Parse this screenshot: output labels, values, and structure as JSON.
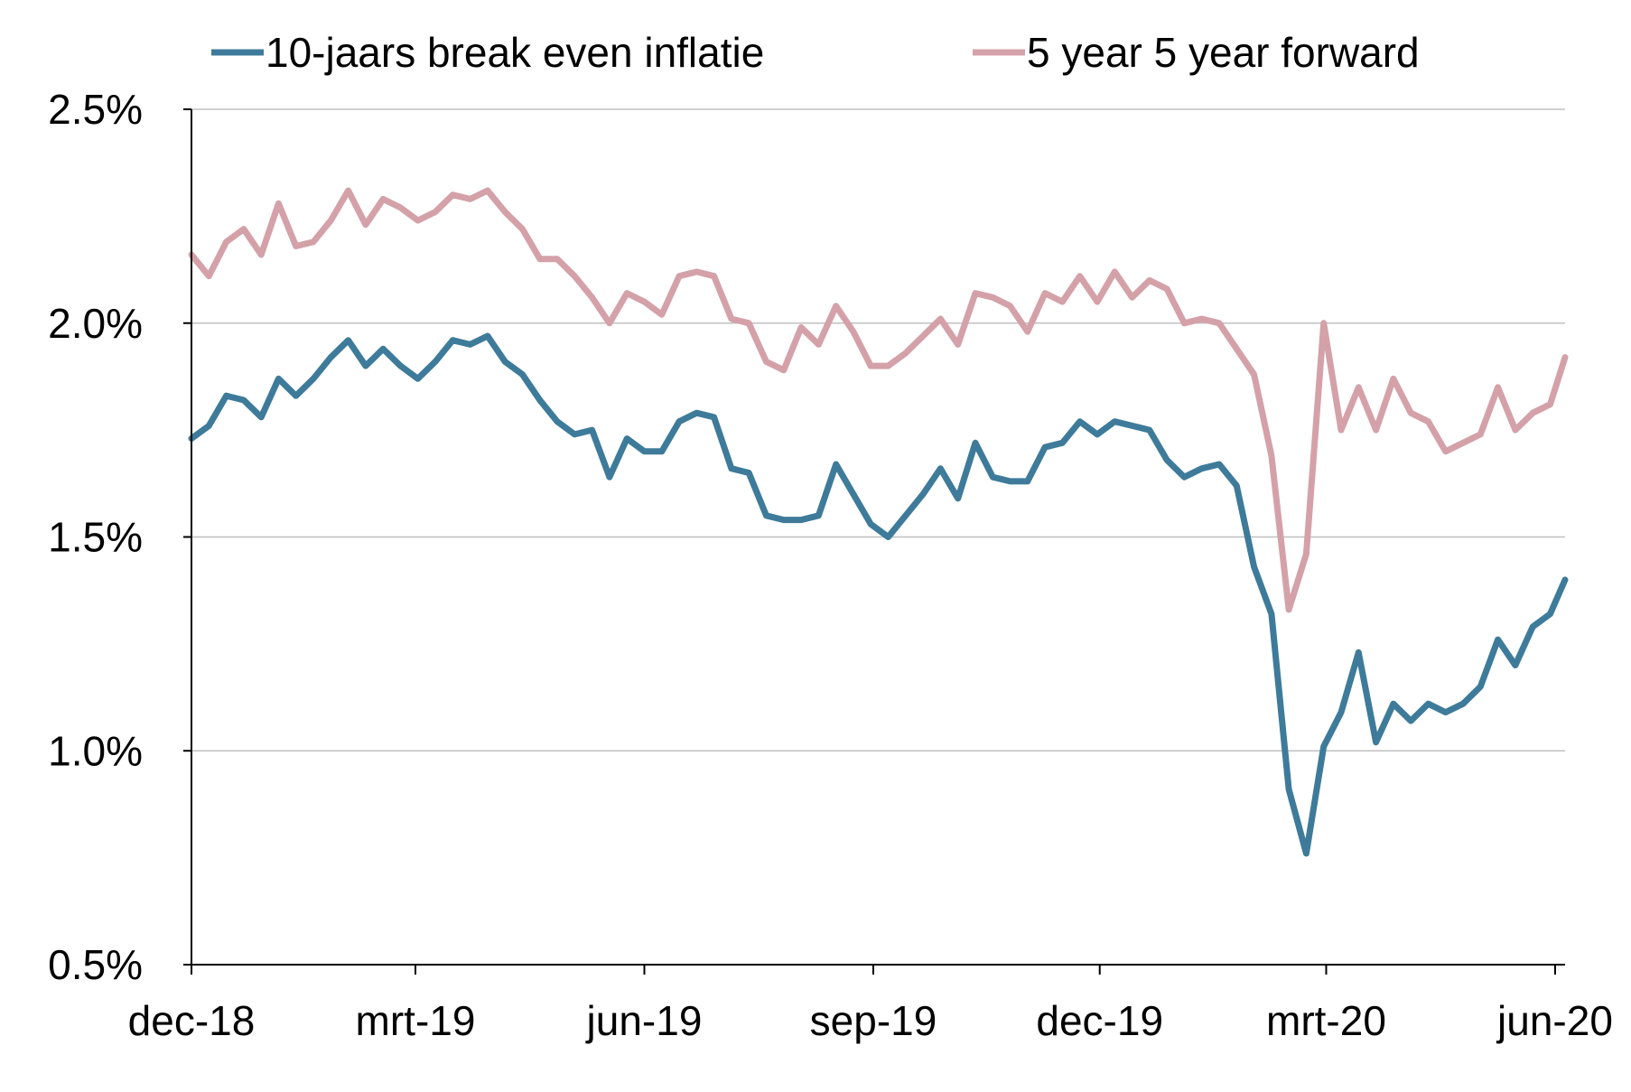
{
  "chart_data": {
    "type": "line",
    "title": "",
    "xlabel": "",
    "ylabel": "",
    "y_unit": "%",
    "ylim": [
      0.5,
      2.5
    ],
    "y_ticks": [
      0.5,
      1.0,
      1.5,
      2.0,
      2.5
    ],
    "y_tick_labels": [
      "0.5%",
      "1.0%",
      "1.5%",
      "2.0%",
      "2.5%"
    ],
    "x_start": "2018-12-01",
    "x_end": "2020-06-05",
    "x_ticks": [
      {
        "label": "dec-18",
        "date": "2018-12-01"
      },
      {
        "label": "mrt-19",
        "date": "2019-03-01"
      },
      {
        "label": "jun-19",
        "date": "2019-06-01"
      },
      {
        "label": "sep-19",
        "date": "2019-09-01"
      },
      {
        "label": "dec-19",
        "date": "2019-12-01"
      },
      {
        "label": "mrt-20",
        "date": "2020-03-01"
      },
      {
        "label": "jun-20",
        "date": "2020-06-01"
      }
    ],
    "grid": true,
    "legend_position": "top",
    "x": [
      "2018-12-01",
      "2018-12-08",
      "2018-12-15",
      "2018-12-22",
      "2018-12-29",
      "2019-01-05",
      "2019-01-12",
      "2019-01-19",
      "2019-01-26",
      "2019-02-02",
      "2019-02-09",
      "2019-02-16",
      "2019-02-23",
      "2019-03-02",
      "2019-03-09",
      "2019-03-16",
      "2019-03-23",
      "2019-03-30",
      "2019-04-06",
      "2019-04-13",
      "2019-04-20",
      "2019-04-27",
      "2019-05-04",
      "2019-05-11",
      "2019-05-18",
      "2019-05-25",
      "2019-06-01",
      "2019-06-08",
      "2019-06-15",
      "2019-06-22",
      "2019-06-29",
      "2019-07-06",
      "2019-07-13",
      "2019-07-20",
      "2019-07-27",
      "2019-08-03",
      "2019-08-10",
      "2019-08-17",
      "2019-08-24",
      "2019-08-31",
      "2019-09-07",
      "2019-09-14",
      "2019-09-21",
      "2019-09-28",
      "2019-10-05",
      "2019-10-12",
      "2019-10-19",
      "2019-10-26",
      "2019-11-02",
      "2019-11-09",
      "2019-11-16",
      "2019-11-23",
      "2019-11-30",
      "2019-12-07",
      "2019-12-14",
      "2019-12-21",
      "2019-12-28",
      "2020-01-04",
      "2020-01-11",
      "2020-01-18",
      "2020-01-25",
      "2020-02-01",
      "2020-02-08",
      "2020-02-15",
      "2020-02-22",
      "2020-02-29",
      "2020-03-07",
      "2020-03-14",
      "2020-03-21",
      "2020-03-28",
      "2020-04-04",
      "2020-04-11",
      "2020-04-18",
      "2020-04-25",
      "2020-05-02",
      "2020-05-09",
      "2020-05-16",
      "2020-05-23",
      "2020-05-30",
      "2020-06-05"
    ],
    "series": [
      {
        "name": "10-jaars break even inflatie",
        "color": "#3e7b9a",
        "values": [
          1.73,
          1.76,
          1.83,
          1.82,
          1.78,
          1.87,
          1.83,
          1.87,
          1.92,
          1.96,
          1.9,
          1.94,
          1.9,
          1.87,
          1.91,
          1.96,
          1.95,
          1.97,
          1.91,
          1.88,
          1.82,
          1.77,
          1.74,
          1.75,
          1.64,
          1.73,
          1.7,
          1.7,
          1.77,
          1.79,
          1.78,
          1.66,
          1.65,
          1.55,
          1.54,
          1.54,
          1.55,
          1.67,
          1.6,
          1.53,
          1.5,
          1.55,
          1.6,
          1.66,
          1.59,
          1.72,
          1.64,
          1.63,
          1.63,
          1.71,
          1.72,
          1.77,
          1.74,
          1.77,
          1.76,
          1.75,
          1.68,
          1.64,
          1.66,
          1.67,
          1.62,
          1.43,
          1.32,
          0.91,
          0.76,
          1.01,
          1.09,
          1.23,
          1.02,
          1.11,
          1.07,
          1.11,
          1.09,
          1.11,
          1.15,
          1.26,
          1.2,
          1.29,
          1.32,
          1.4
        ]
      },
      {
        "name": "5 year 5 year forward",
        "color": "#d4a1a9",
        "values": [
          2.16,
          2.11,
          2.19,
          2.22,
          2.16,
          2.28,
          2.18,
          2.19,
          2.24,
          2.31,
          2.23,
          2.29,
          2.27,
          2.24,
          2.26,
          2.3,
          2.29,
          2.31,
          2.26,
          2.22,
          2.15,
          2.15,
          2.11,
          2.06,
          2.0,
          2.07,
          2.05,
          2.02,
          2.11,
          2.12,
          2.11,
          2.01,
          2.0,
          1.91,
          1.89,
          1.99,
          1.95,
          2.04,
          1.98,
          1.9,
          1.9,
          1.93,
          1.97,
          2.01,
          1.95,
          2.07,
          2.06,
          2.04,
          1.98,
          2.07,
          2.05,
          2.11,
          2.05,
          2.12,
          2.06,
          2.1,
          2.08,
          2.0,
          2.01,
          2.0,
          1.94,
          1.88,
          1.69,
          1.33,
          1.46,
          2.0,
          1.75,
          1.85,
          1.75,
          1.87,
          1.79,
          1.77,
          1.7,
          1.72,
          1.74,
          1.85,
          1.75,
          1.79,
          1.81,
          1.92
        ]
      }
    ]
  }
}
